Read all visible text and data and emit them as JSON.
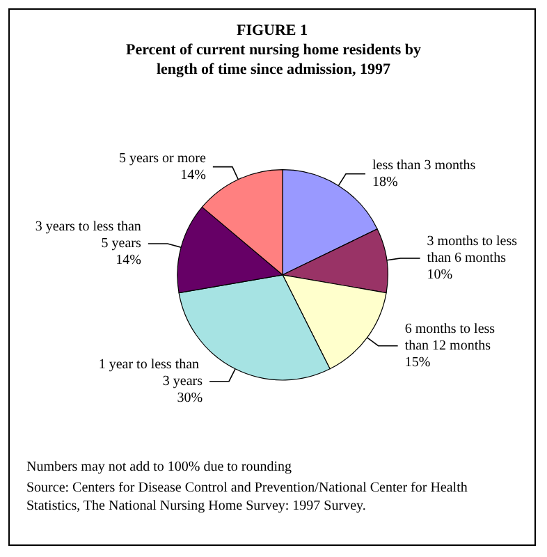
{
  "chart_data": {
    "type": "pie",
    "title": "FIGURE 1",
    "subtitle": "Percent of current nursing home residents by length of time since admission, 1997",
    "categories": [
      "less than 3 months",
      "3 months to less than 6 months",
      "6 months to less than 12 months",
      "1 year to less than 3 years",
      "3 years to less than 5 years",
      "5 years or more"
    ],
    "values": [
      18,
      10,
      15,
      30,
      14,
      14
    ],
    "value_labels": [
      "18%",
      "10%",
      "15%",
      "30%",
      "14%",
      "14%"
    ],
    "colors": [
      "#9999ff",
      "#993366",
      "#ffffcc",
      "#a6e3e3",
      "#660066",
      "#ff8080"
    ],
    "legend": false,
    "annotations": [
      "Numbers may not add to 100% due to rounding",
      "Source: Centers for Disease Control and Prevention/National Center for Health Statistics, The National Nursing Home Survey: 1997 Survey."
    ]
  }
}
